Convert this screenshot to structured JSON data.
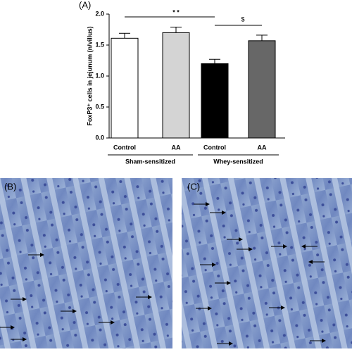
{
  "chart_data": {
    "type": "bar",
    "panel_label": "(A)",
    "ylabel": "FoxP3⁺ cells in jejunum (n/villus)",
    "categories": [
      "Control",
      "AA",
      "Control",
      "AA"
    ],
    "groups": [
      "Sham-sensitized",
      "Whey-sensitized"
    ],
    "values": [
      1.61,
      1.7,
      1.2,
      1.57
    ],
    "errors": [
      0.08,
      0.09,
      0.07,
      0.09
    ],
    "colors": [
      "#ffffff",
      "#d4d4d4",
      "#000000",
      "#676767"
    ],
    "ylim": [
      0,
      2.0
    ],
    "yticks": [
      {
        "value": 0,
        "label": "0.0"
      },
      {
        "value": 0.5,
        "label": "0.5"
      },
      {
        "value": 1.0,
        "label": "1.0"
      },
      {
        "value": 1.5,
        "label": "1.5"
      },
      {
        "value": 2.0,
        "label": "2.0"
      }
    ],
    "annotations": [
      "* *",
      "$"
    ]
  },
  "panels": [
    {
      "label": "(B)"
    },
    {
      "label": "(C)"
    }
  ]
}
